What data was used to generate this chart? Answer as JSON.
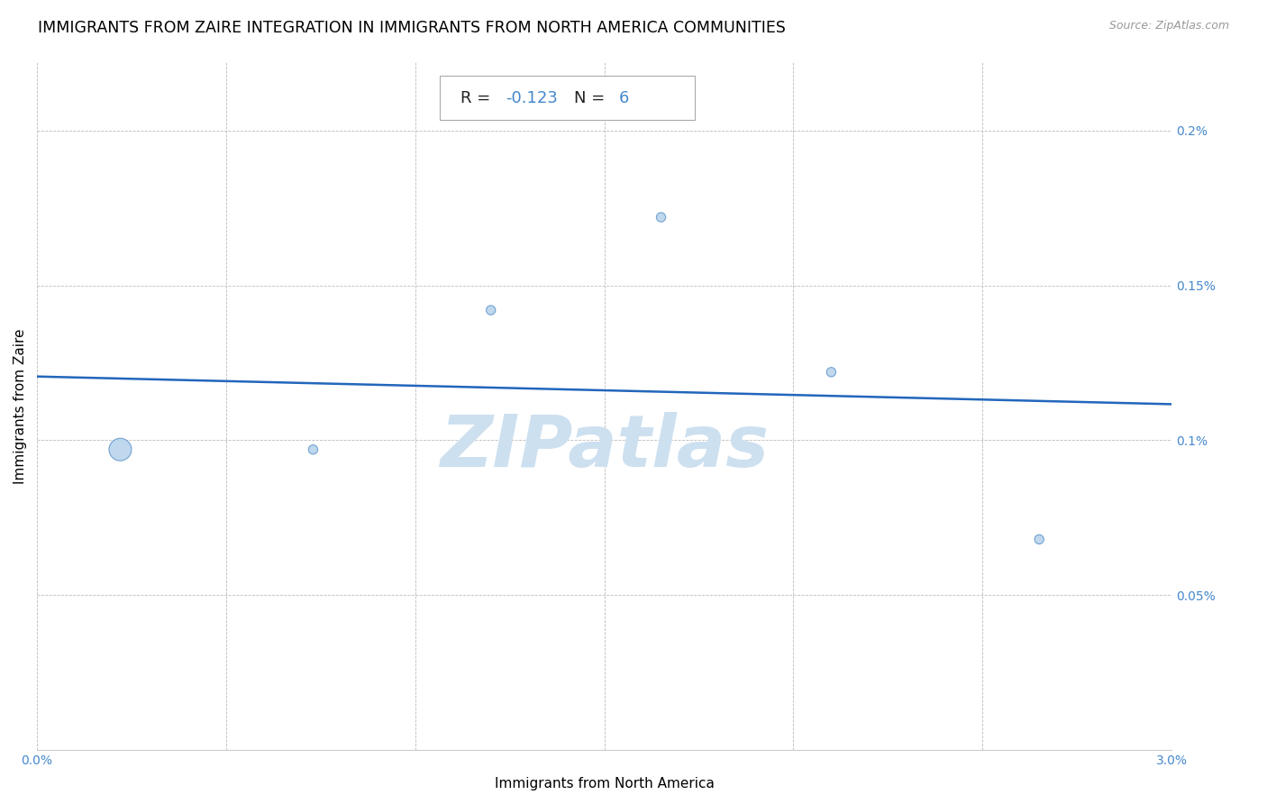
{
  "title": "IMMIGRANTS FROM ZAIRE INTEGRATION IN IMMIGRANTS FROM NORTH AMERICA COMMUNITIES",
  "source": "Source: ZipAtlas.com",
  "xlabel": "Immigrants from North America",
  "ylabel": "Immigrants from Zaire",
  "xlim": [
    0.0,
    0.03
  ],
  "ylim": [
    0.0,
    0.002222
  ],
  "x_ticks": [
    0.0,
    0.005,
    0.01,
    0.015,
    0.02,
    0.025,
    0.03
  ],
  "x_tick_labels": [
    "0.0%",
    "",
    "",
    "",
    "",
    "",
    "3.0%"
  ],
  "y_ticks": [
    0.0,
    0.0005,
    0.001,
    0.0015,
    0.002
  ],
  "y_tick_labels": [
    "",
    "0.05%",
    "0.1%",
    "0.15%",
    "0.2%"
  ],
  "R": -0.123,
  "N": 6,
  "scatter_x": [
    0.0022,
    0.0073,
    0.012,
    0.0165,
    0.021,
    0.0265
  ],
  "scatter_y": [
    0.00097,
    0.00097,
    0.00142,
    0.00172,
    0.00122,
    0.00068
  ],
  "scatter_sizes": [
    320,
    55,
    55,
    55,
    55,
    55
  ],
  "scatter_color": "#b8d4ed",
  "scatter_edge_color": "#6699cc",
  "scatter_linewidths": 0.8,
  "trend_color": "#2266bb",
  "trend_linewidth": 1.8,
  "watermark_text": "ZIPatlas",
  "watermark_color": "#cde0f0",
  "watermark_fontsize": 58,
  "grid_color": "#bbbbbb",
  "grid_linestyle": "--",
  "grid_linewidth": 0.6,
  "title_fontsize": 12.5,
  "axis_label_fontsize": 11,
  "tick_label_color": "#4488cc",
  "annotation_box_facecolor": "#ffffff",
  "annotation_box_edgecolor": "#aaaaaa",
  "annotation_fontsize": 13,
  "annotation_R_color": "#222222",
  "annotation_val_color": "#4488cc",
  "bg_color": "#ffffff"
}
